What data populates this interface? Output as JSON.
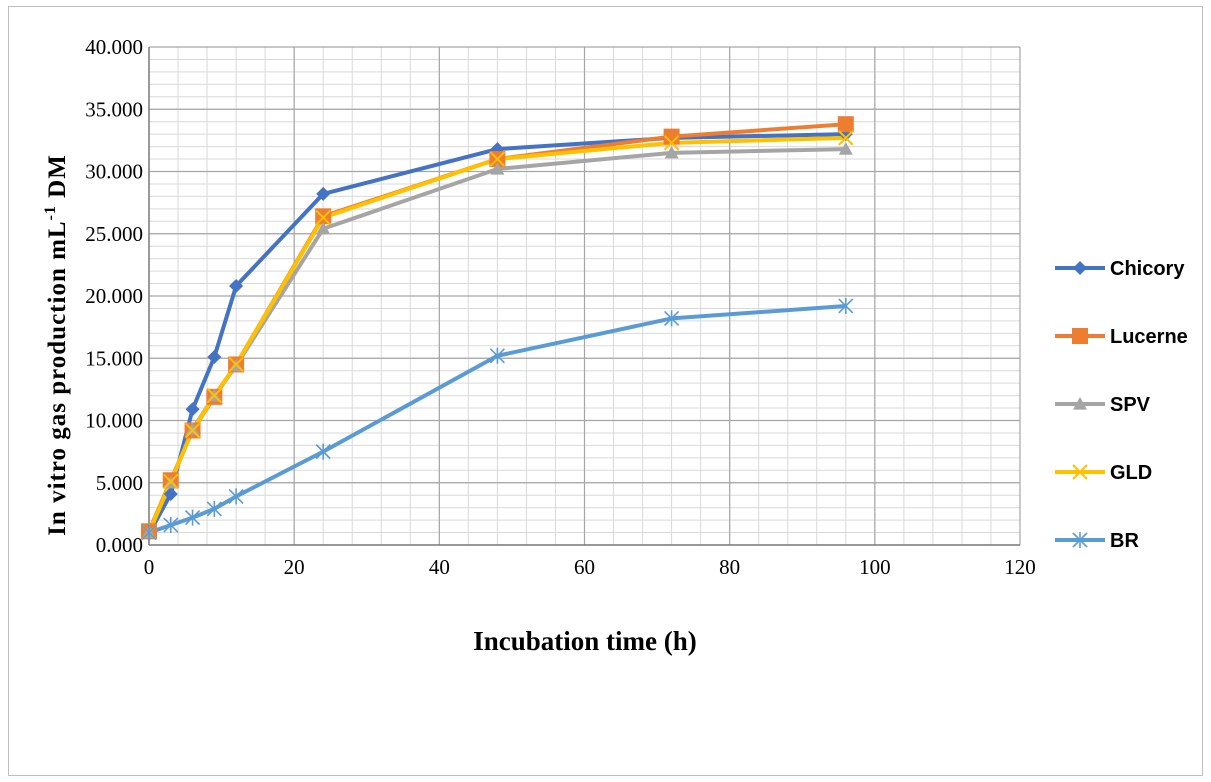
{
  "chart_data": {
    "type": "line",
    "title": "",
    "xlabel": "Incubation time (h)",
    "ylabel_main": "In vitro gas production mL",
    "ylabel_sup": "-1",
    "ylabel_tail": " DM",
    "xlim": [
      0,
      120
    ],
    "ylim": [
      0,
      40
    ],
    "x_ticks": [
      0,
      20,
      40,
      60,
      80,
      100,
      120
    ],
    "x_tick_labels": [
      "0",
      "20",
      "40",
      "60",
      "80",
      "100",
      "120"
    ],
    "y_ticks": [
      0,
      5,
      10,
      15,
      20,
      25,
      30,
      35,
      40
    ],
    "y_tick_labels": [
      "0.000",
      "5.000",
      "10.000",
      "15.000",
      "20.000",
      "25.000",
      "30.000",
      "35.000",
      "40.000"
    ],
    "grid": true,
    "legend_position": "right",
    "x": [
      0,
      3,
      6,
      9,
      12,
      24,
      48,
      72,
      96
    ],
    "series": [
      {
        "name": "Chicory",
        "color": "#4472C4",
        "marker": "diamond",
        "values": [
          0.9,
          4.1,
          10.9,
          15.1,
          20.8,
          28.2,
          31.8,
          32.7,
          33.0
        ]
      },
      {
        "name": "Lucerne",
        "color": "#ED7D31",
        "marker": "square",
        "values": [
          1.1,
          5.2,
          9.2,
          11.9,
          14.5,
          26.4,
          31.0,
          32.8,
          33.8
        ]
      },
      {
        "name": "SPV",
        "color": "#A5A5A5",
        "marker": "triangle",
        "values": [
          1.0,
          5.0,
          9.3,
          12.0,
          14.4,
          25.4,
          30.2,
          31.5,
          31.8
        ]
      },
      {
        "name": "GLD",
        "color": "#FFC000",
        "marker": "x",
        "values": [
          1.0,
          5.1,
          9.2,
          12.0,
          14.5,
          26.3,
          31.0,
          32.3,
          32.7
        ]
      },
      {
        "name": "BR",
        "color": "#5B9BD5",
        "marker": "star",
        "values": [
          1.0,
          1.6,
          2.2,
          2.9,
          3.9,
          7.5,
          15.2,
          18.2,
          19.2
        ]
      }
    ]
  }
}
